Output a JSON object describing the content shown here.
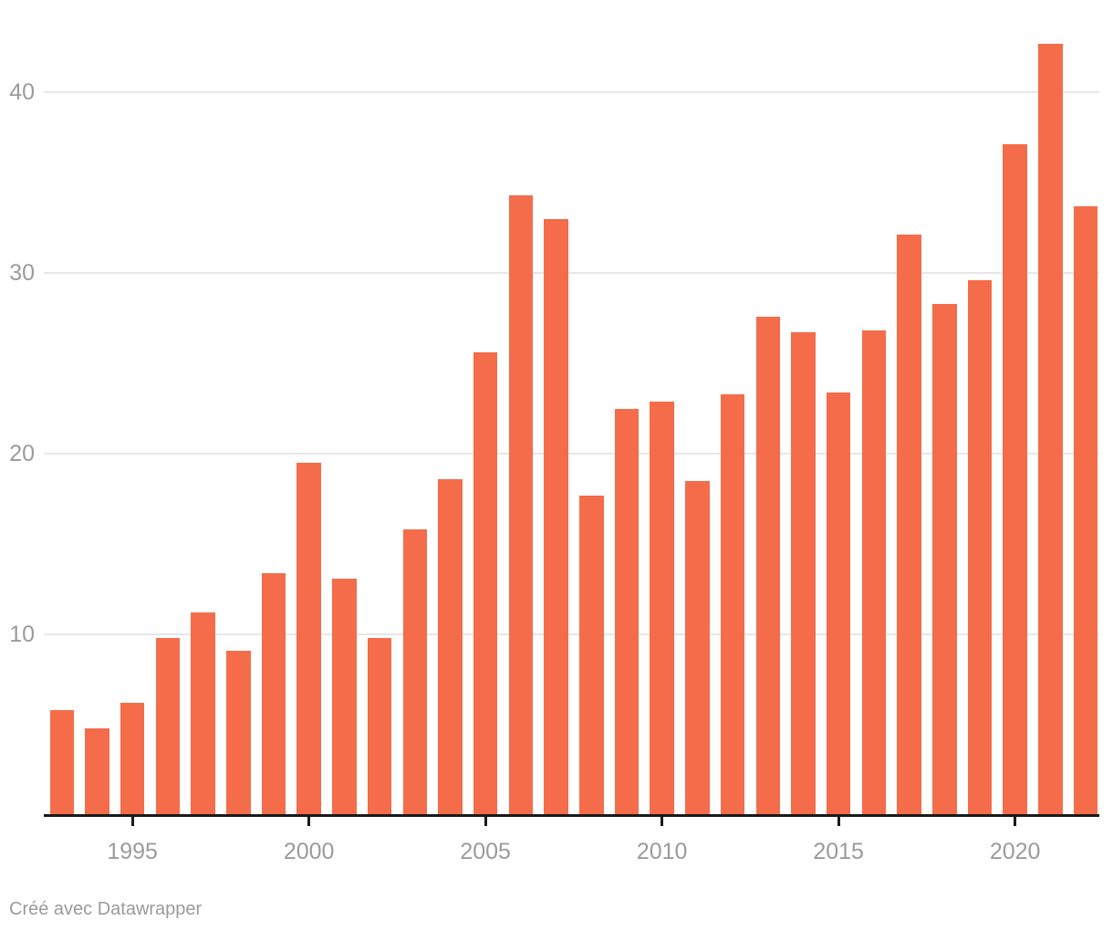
{
  "chart_data": {
    "type": "bar",
    "title": "",
    "xlabel": "",
    "ylabel": "",
    "categories": [
      1993,
      1994,
      1995,
      1996,
      1997,
      1998,
      1999,
      2000,
      2001,
      2002,
      2003,
      2004,
      2005,
      2006,
      2007,
      2008,
      2009,
      2010,
      2011,
      2012,
      2013,
      2014,
      2015,
      2016,
      2017,
      2018,
      2019,
      2020,
      2021,
      2022
    ],
    "values": [
      5.8,
      4.8,
      6.2,
      9.8,
      11.2,
      9.1,
      13.4,
      19.5,
      13.1,
      9.8,
      15.8,
      18.6,
      25.6,
      34.3,
      33.0,
      17.7,
      22.5,
      22.9,
      18.5,
      23.3,
      27.6,
      26.7,
      23.4,
      26.8,
      32.1,
      28.3,
      29.6,
      37.1,
      42.7,
      33.7
    ],
    "ylim": [
      0,
      45
    ],
    "yticks": [
      10,
      20,
      30,
      40
    ],
    "xticks": [
      1995,
      2000,
      2005,
      2010,
      2015,
      2020
    ],
    "grid": "horizontal-only",
    "legend": "none",
    "footer": "Créé avec Datawrapper"
  },
  "colors": {
    "bar": "#f46c4a",
    "gridline": "#e7e7e7",
    "axis_line": "#1a1a1a",
    "tick_label": "#9b9b9b",
    "footer_text": "#9b9b9b",
    "background": "#ffffff"
  }
}
